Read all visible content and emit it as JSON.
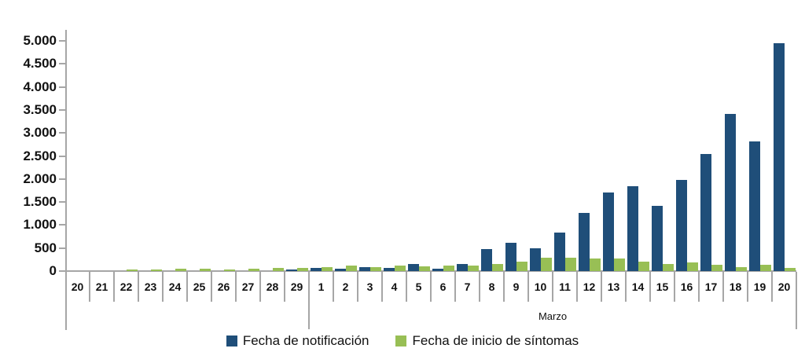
{
  "chart_data": {
    "type": "bar",
    "title": "",
    "x_axis": {
      "categories": [
        "20",
        "21",
        "22",
        "23",
        "24",
        "25",
        "26",
        "27",
        "28",
        "29",
        "1",
        "2",
        "3",
        "4",
        "5",
        "6",
        "7",
        "8",
        "9",
        "10",
        "11",
        "12",
        "13",
        "14",
        "15",
        "16",
        "17",
        "18",
        "19",
        "20"
      ],
      "groups": [
        {
          "label": "",
          "span": [
            0,
            9
          ]
        },
        {
          "label": "Marzo",
          "span": [
            10,
            29
          ]
        }
      ]
    },
    "y_axis": {
      "range": [
        0,
        5000
      ],
      "ticks": [
        {
          "value": 0,
          "label": "0"
        },
        {
          "value": 500,
          "label": "500"
        },
        {
          "value": 1000,
          "label": "1.000"
        },
        {
          "value": 1500,
          "label": "1.500"
        },
        {
          "value": 2000,
          "label": "2.000"
        },
        {
          "value": 2500,
          "label": "2.500"
        },
        {
          "value": 3000,
          "label": "3.000"
        },
        {
          "value": 3500,
          "label": "3.500"
        },
        {
          "value": 4000,
          "label": "4.000"
        },
        {
          "value": 4500,
          "label": "4.500"
        },
        {
          "value": 5000,
          "label": "5.000"
        }
      ]
    },
    "series": [
      {
        "name": "Fecha de notificación",
        "color": "#1f4e79",
        "values": [
          0,
          0,
          0,
          0,
          0,
          0,
          0,
          0,
          0,
          30,
          70,
          55,
          90,
          70,
          150,
          45,
          160,
          470,
          620,
          500,
          830,
          1260,
          1700,
          1850,
          1420,
          1980,
          2540,
          3420,
          2820,
          4950
        ]
      },
      {
        "name": "Fecha de inicio de síntomas",
        "color": "#98bf55",
        "values": [
          0,
          0,
          30,
          30,
          50,
          45,
          40,
          50,
          60,
          60,
          80,
          120,
          90,
          120,
          110,
          125,
          120,
          160,
          210,
          290,
          290,
          270,
          280,
          200,
          160,
          190,
          140,
          80,
          140,
          60
        ]
      }
    ],
    "grid": false,
    "legend_position": "bottom-center"
  },
  "legend": {
    "items": [
      {
        "label": "Fecha de notificación",
        "color": "#1f4e79"
      },
      {
        "label": "Fecha de inicio de síntomas",
        "color": "#98bf55"
      }
    ]
  },
  "colors": {
    "axis": "#a6a6a6",
    "text": "#111111",
    "background": "#ffffff"
  }
}
